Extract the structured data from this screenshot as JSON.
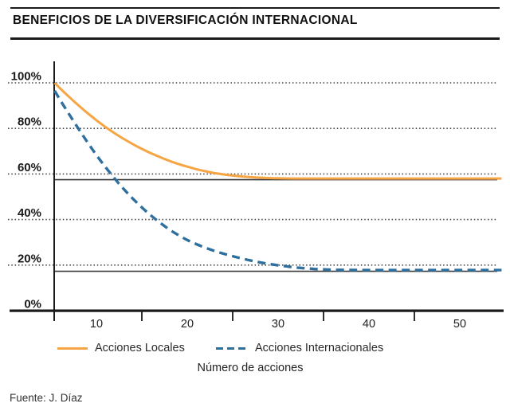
{
  "title": "BENEFICIOS DE LA DIVERSIFICACIÓN INTERNACIONAL",
  "source": "Fuente: J. Díaz",
  "colors": {
    "local_line": "#F6A544",
    "international_line": "#2E6F9E",
    "axis": "#1a1a1a",
    "grid_dots": "#444444",
    "reference_line": "#3a3a3a",
    "tick_text": "#222222"
  },
  "legend": [
    {
      "label": "Acciones Locales",
      "series": "local",
      "style": "solid"
    },
    {
      "label": "Acciones Internacionales",
      "series": "international",
      "style": "dashed"
    }
  ],
  "chart_data": {
    "type": "line",
    "title": "BENEFICIOS DE LA DIVERSIFICACIÓN INTERNACIONAL",
    "xlabel": "Número de acciones",
    "ylabel": "",
    "xlim": [
      5,
      55
    ],
    "ylim": [
      0,
      105
    ],
    "x_ticks": [
      10,
      20,
      30,
      40,
      50
    ],
    "x_minor_ticks": [
      15,
      25,
      35,
      45
    ],
    "y_ticks": [
      {
        "value": 100,
        "label": "100%"
      },
      {
        "value": 80,
        "label": "80%"
      },
      {
        "value": 60,
        "label": "60%"
      },
      {
        "value": 40,
        "label": "40%"
      },
      {
        "value": 20,
        "label": "20%"
      },
      {
        "value": 0,
        "label": "0%"
      }
    ],
    "grid": "horizontal-dotted",
    "legend_position": "bottom",
    "reference_lines": [
      {
        "pct": 57.5,
        "for_series": "Acciones Locales"
      },
      {
        "pct": 17.3,
        "for_series": "Acciones Internacionales"
      }
    ],
    "series": [
      {
        "name": "Acciones Locales",
        "color": "#F6A544",
        "style": "solid",
        "asymptote_pct": 58,
        "points": [
          [
            5.4,
            100
          ],
          [
            6,
            97.6
          ],
          [
            7,
            93.8
          ],
          [
            8,
            90.2
          ],
          [
            9,
            86.8
          ],
          [
            10,
            83.6
          ],
          [
            11,
            80.6
          ],
          [
            12,
            77.9
          ],
          [
            13,
            75.4
          ],
          [
            14,
            73.1
          ],
          [
            15,
            71.0
          ],
          [
            16,
            69.1
          ],
          [
            17,
            67.4
          ],
          [
            18,
            65.8
          ],
          [
            19,
            64.4
          ],
          [
            20,
            63.2
          ],
          [
            21,
            62.1
          ],
          [
            22,
            61.2
          ],
          [
            23,
            60.4
          ],
          [
            24,
            59.8
          ],
          [
            25,
            59.3
          ],
          [
            26,
            58.9
          ],
          [
            27,
            58.6
          ],
          [
            28,
            58.4
          ],
          [
            29,
            58.2
          ],
          [
            30,
            58.1
          ],
          [
            32,
            58.0
          ],
          [
            34,
            58.0
          ],
          [
            36,
            58.0
          ],
          [
            40,
            58.0
          ],
          [
            45,
            58.0
          ],
          [
            50,
            58.0
          ],
          [
            54.6,
            58.0
          ]
        ]
      },
      {
        "name": "Acciones Internacionales",
        "color": "#2E6F9E",
        "style": "dashed",
        "asymptote_pct": 17.8,
        "points": [
          [
            5.4,
            96.5
          ],
          [
            6,
            92.5
          ],
          [
            7,
            86.2
          ],
          [
            8,
            80.0
          ],
          [
            9,
            74.0
          ],
          [
            10,
            68.3
          ],
          [
            11,
            63.0
          ],
          [
            12,
            58.0
          ],
          [
            13,
            53.4
          ],
          [
            14,
            49.2
          ],
          [
            15,
            45.3
          ],
          [
            16,
            41.8
          ],
          [
            17,
            38.6
          ],
          [
            18,
            35.7
          ],
          [
            19,
            33.2
          ],
          [
            20,
            31.0
          ],
          [
            21,
            29.2
          ],
          [
            22,
            27.6
          ],
          [
            23,
            26.2
          ],
          [
            24,
            25.0
          ],
          [
            25,
            23.9
          ],
          [
            26,
            22.9
          ],
          [
            27,
            22.0
          ],
          [
            28,
            21.2
          ],
          [
            29,
            20.5
          ],
          [
            30,
            19.9
          ],
          [
            31,
            19.4
          ],
          [
            32,
            18.9
          ],
          [
            33,
            18.6
          ],
          [
            34,
            18.3
          ],
          [
            35,
            18.1
          ],
          [
            36,
            17.95
          ],
          [
            38,
            17.85
          ],
          [
            40,
            17.8
          ],
          [
            45,
            17.8
          ],
          [
            50,
            17.8
          ],
          [
            54.6,
            17.8
          ]
        ]
      }
    ]
  }
}
